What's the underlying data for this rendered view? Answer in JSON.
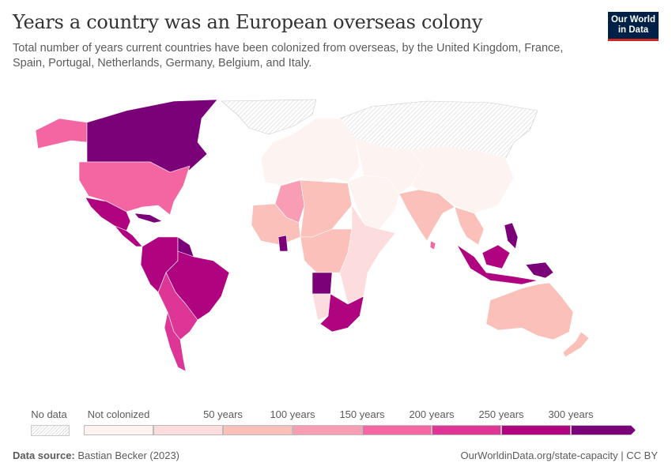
{
  "header": {
    "title": "Years a country was an European overseas colony",
    "subtitle": "Total number of years current countries have been colonized from overseas, by the United Kingdom, France, Spain, Portugal, Netherlands, Germany, Belgium, and Italy.",
    "logo_line1": "Our World",
    "logo_line2": "in Data"
  },
  "legend": {
    "no_data_label": "No data",
    "labels": [
      "Not colonized",
      "50 years",
      "100 years",
      "150 years",
      "200 years",
      "250 years",
      "300 years"
    ],
    "bin_colors": [
      "#fdf4f2",
      "#fcdcdc",
      "#fbc0b9",
      "#f89db3",
      "#f366a2",
      "#dd3697",
      "#b0037f",
      "#7a0177"
    ],
    "no_data_color": "#e8e8e8"
  },
  "map": {
    "region_bins": {
      "canada": 7,
      "alaska": 4,
      "usa": 4,
      "mexico": 6,
      "central-america": 6,
      "caribbean": 7,
      "south-america-north": 6,
      "guianas": 7,
      "brazil": 6,
      "south-america-south": 5,
      "patagonia": 5,
      "greenland": -1,
      "russia": -1,
      "europe": 0,
      "north-africa-algeria": 3,
      "west-africa": 2,
      "ghana": 7,
      "central-africa": 2,
      "angola": 7,
      "east-africa": 1,
      "southern-africa": 6,
      "namibia": 1,
      "middle-east": 0,
      "central-asia": 0,
      "china": 0,
      "india": 2,
      "southeast-asia": 2,
      "indonesia": 6,
      "philippines": 7,
      "new-guinea": 7,
      "australia": 2,
      "new-zealand": 2,
      "sri-lanka": 4
    }
  },
  "footer": {
    "source_label": "Data source:",
    "source": "Bastian Becker (2023)",
    "url": "OurWorldinData.org/state-capacity | CC BY"
  }
}
